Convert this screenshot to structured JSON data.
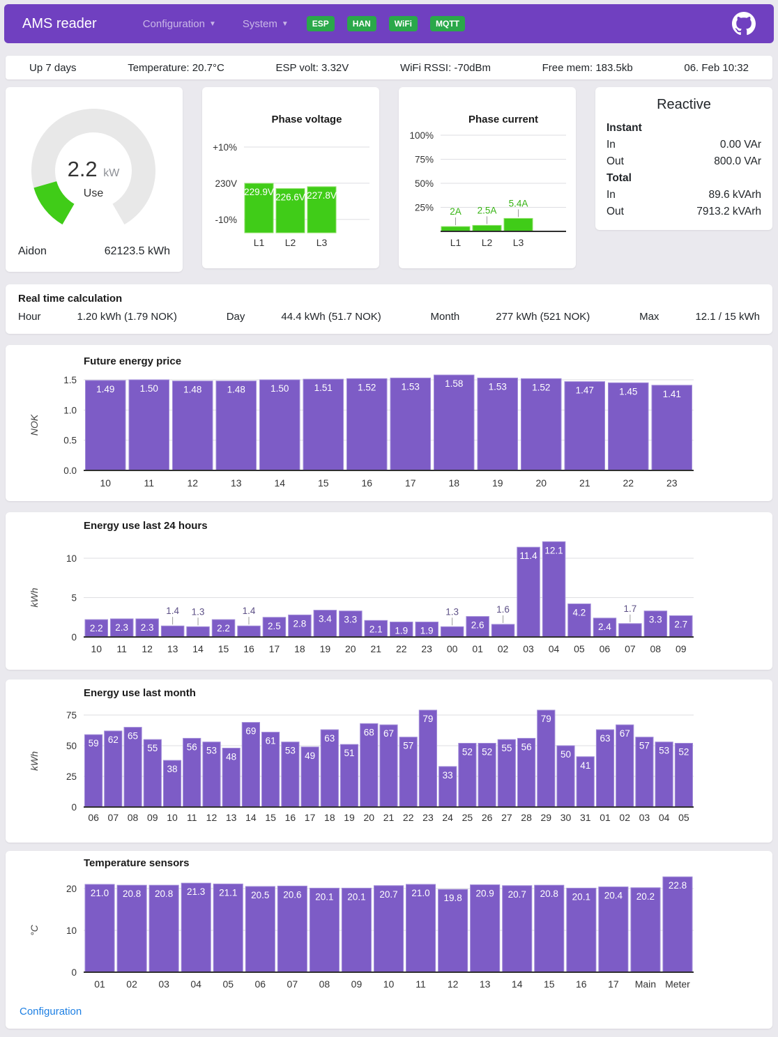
{
  "header": {
    "title": "AMS reader",
    "nav": [
      {
        "label": "Configuration"
      },
      {
        "label": "System"
      }
    ],
    "badges": [
      "ESP",
      "HAN",
      "WiFi",
      "MQTT"
    ]
  },
  "status_bar": {
    "items": [
      "Up 7 days",
      "Temperature: 20.7°C",
      "ESP volt: 3.32V",
      "WiFi RSSI: -70dBm",
      "Free mem: 183.5kb",
      "06. Feb 10:32"
    ]
  },
  "gauge": {
    "value": "2.2",
    "unit": "kW",
    "label": "Use",
    "value_num": 2.2,
    "max": 15,
    "meter_name": "Aidon",
    "total": "62123.5 kWh"
  },
  "reactive": {
    "title": "Reactive",
    "instant_label": "Instant",
    "total_label": "Total",
    "in_label": "In",
    "out_label": "Out",
    "instant_in": "0.00 VAr",
    "instant_out": "800.0 VAr",
    "total_in": "89.6 kVArh",
    "total_out": "7913.2 kVArh"
  },
  "realtime": {
    "title": "Real time calculation",
    "items": [
      {
        "label": "Hour",
        "value": "1.20 kWh (1.79 NOK)"
      },
      {
        "label": "Day",
        "value": "44.4 kWh (51.7 NOK)"
      },
      {
        "label": "Month",
        "value": "277 kWh (521 NOK)"
      },
      {
        "label": "Max",
        "value": "12.1 / 15 kWh"
      }
    ]
  },
  "footer": {
    "link": "Configuration"
  },
  "colors": {
    "header_purple": "#7040c0",
    "purple_fill": "#7d5cc6",
    "purple_stroke": "#a18cd8",
    "green_fill": "#40cc18",
    "green_stroke": "#8ce066",
    "badge_green": "#2aa84a",
    "link_blue": "#1d7fe3",
    "gauge_track": "#e8e8e8",
    "gauge_green": "#40cc18"
  },
  "chart_data": [
    {
      "id": "voltage",
      "type": "bar",
      "title": "Phase voltage",
      "categories": [
        "L1",
        "L2",
        "L3"
      ],
      "values": [
        229.9,
        226.6,
        227.8
      ],
      "value_labels": [
        "229.9V",
        "226.6V",
        "227.8V"
      ],
      "axis_ticks": [
        {
          "label": "+10%",
          "value": 253
        },
        {
          "label": "230V",
          "value": 230
        },
        {
          "label": "-10%",
          "value": 207
        }
      ],
      "ylim": [
        198.5,
        253
      ],
      "color": "green",
      "legend": "none",
      "grid": "horizontal"
    },
    {
      "id": "current",
      "type": "bar",
      "title": "Phase current",
      "categories": [
        "L1",
        "L2",
        "L3"
      ],
      "values": [
        2,
        2.5,
        5.4
      ],
      "value_labels": [
        "2A",
        "2.5A",
        "5.4A"
      ],
      "axis_ticks": [
        {
          "label": "100%",
          "value": 40
        },
        {
          "label": "75%",
          "value": 30
        },
        {
          "label": "50%",
          "value": 20
        },
        {
          "label": "25%",
          "value": 10
        }
      ],
      "ylim": [
        0,
        40
      ],
      "dark_baseline": true,
      "color": "green",
      "above_color": "#35b312",
      "legend": "none",
      "grid": "horizontal"
    },
    {
      "id": "price",
      "type": "bar",
      "title": "Future energy price",
      "xlabel": "",
      "ylabel": "NOK",
      "categories": [
        "10",
        "11",
        "12",
        "13",
        "14",
        "15",
        "16",
        "17",
        "18",
        "19",
        "20",
        "21",
        "22",
        "23"
      ],
      "values": [
        1.49,
        1.5,
        1.48,
        1.48,
        1.5,
        1.51,
        1.52,
        1.53,
        1.58,
        1.53,
        1.52,
        1.47,
        1.45,
        1.41
      ],
      "yticks": [
        0,
        0.5,
        1,
        1.5
      ],
      "tick_decimals": 1,
      "decimals": 2,
      "ylim": [
        0,
        1.5
      ],
      "dark_baseline": true,
      "color": "purple",
      "legend": "none",
      "grid": "horizontal"
    },
    {
      "id": "last24",
      "type": "bar",
      "title": "Energy use last 24 hours",
      "xlabel": "",
      "ylabel": "kWh",
      "categories": [
        "10",
        "11",
        "12",
        "13",
        "14",
        "15",
        "16",
        "17",
        "18",
        "19",
        "20",
        "21",
        "22",
        "23",
        "00",
        "01",
        "02",
        "03",
        "04",
        "05",
        "06",
        "07",
        "08",
        "09"
      ],
      "values": [
        2.2,
        2.3,
        2.3,
        1.4,
        1.3,
        2.2,
        1.4,
        2.5,
        2.8,
        3.4,
        3.3,
        2.1,
        1.9,
        1.9,
        1.3,
        2.6,
        1.6,
        11.4,
        12.1,
        4.2,
        2.4,
        1.7,
        3.3,
        2.7
      ],
      "yticks": [
        0,
        5,
        10
      ],
      "tick_decimals": 0,
      "decimals": 1,
      "ylim": [
        0,
        10
      ],
      "dark_baseline": true,
      "color": "purple",
      "above_color": "#5d5086",
      "legend": "none",
      "grid": "horizontal"
    },
    {
      "id": "month",
      "type": "bar",
      "title": "Energy use last month",
      "xlabel": "",
      "ylabel": "kWh",
      "categories": [
        "06",
        "07",
        "08",
        "09",
        "10",
        "11",
        "12",
        "13",
        "14",
        "15",
        "16",
        "17",
        "18",
        "19",
        "20",
        "21",
        "22",
        "23",
        "24",
        "25",
        "26",
        "27",
        "28",
        "29",
        "30",
        "31",
        "01",
        "02",
        "03",
        "04",
        "05"
      ],
      "values": [
        59,
        62,
        65,
        55,
        38,
        56,
        53,
        48,
        69,
        61,
        53,
        49,
        63,
        51,
        68,
        67,
        57,
        79,
        33,
        52,
        52,
        55,
        56,
        79,
        50,
        41,
        63,
        67,
        57,
        53,
        52
      ],
      "yticks": [
        0,
        25,
        50,
        75
      ],
      "tick_decimals": 0,
      "decimals": 0,
      "ylim": [
        0,
        75
      ],
      "dark_baseline": true,
      "color": "purple",
      "legend": "none",
      "grid": "horizontal"
    },
    {
      "id": "temp",
      "type": "bar",
      "title": "Temperature sensors",
      "xlabel": "",
      "ylabel": "°C",
      "categories": [
        "01",
        "02",
        "03",
        "04",
        "05",
        "06",
        "07",
        "08",
        "09",
        "10",
        "11",
        "12",
        "13",
        "14",
        "15",
        "16",
        "17",
        "Main",
        "Meter"
      ],
      "values": [
        21.0,
        20.8,
        20.8,
        21.3,
        21.1,
        20.5,
        20.6,
        20.1,
        20.1,
        20.7,
        21.0,
        19.8,
        20.9,
        20.7,
        20.8,
        20.1,
        20.4,
        20.2,
        22.8
      ],
      "yticks": [
        0,
        10,
        20
      ],
      "tick_decimals": 0,
      "decimals": 1,
      "ylim": [
        0,
        20
      ],
      "dark_baseline": true,
      "color": "purple",
      "legend": "none",
      "grid": "horizontal"
    }
  ]
}
